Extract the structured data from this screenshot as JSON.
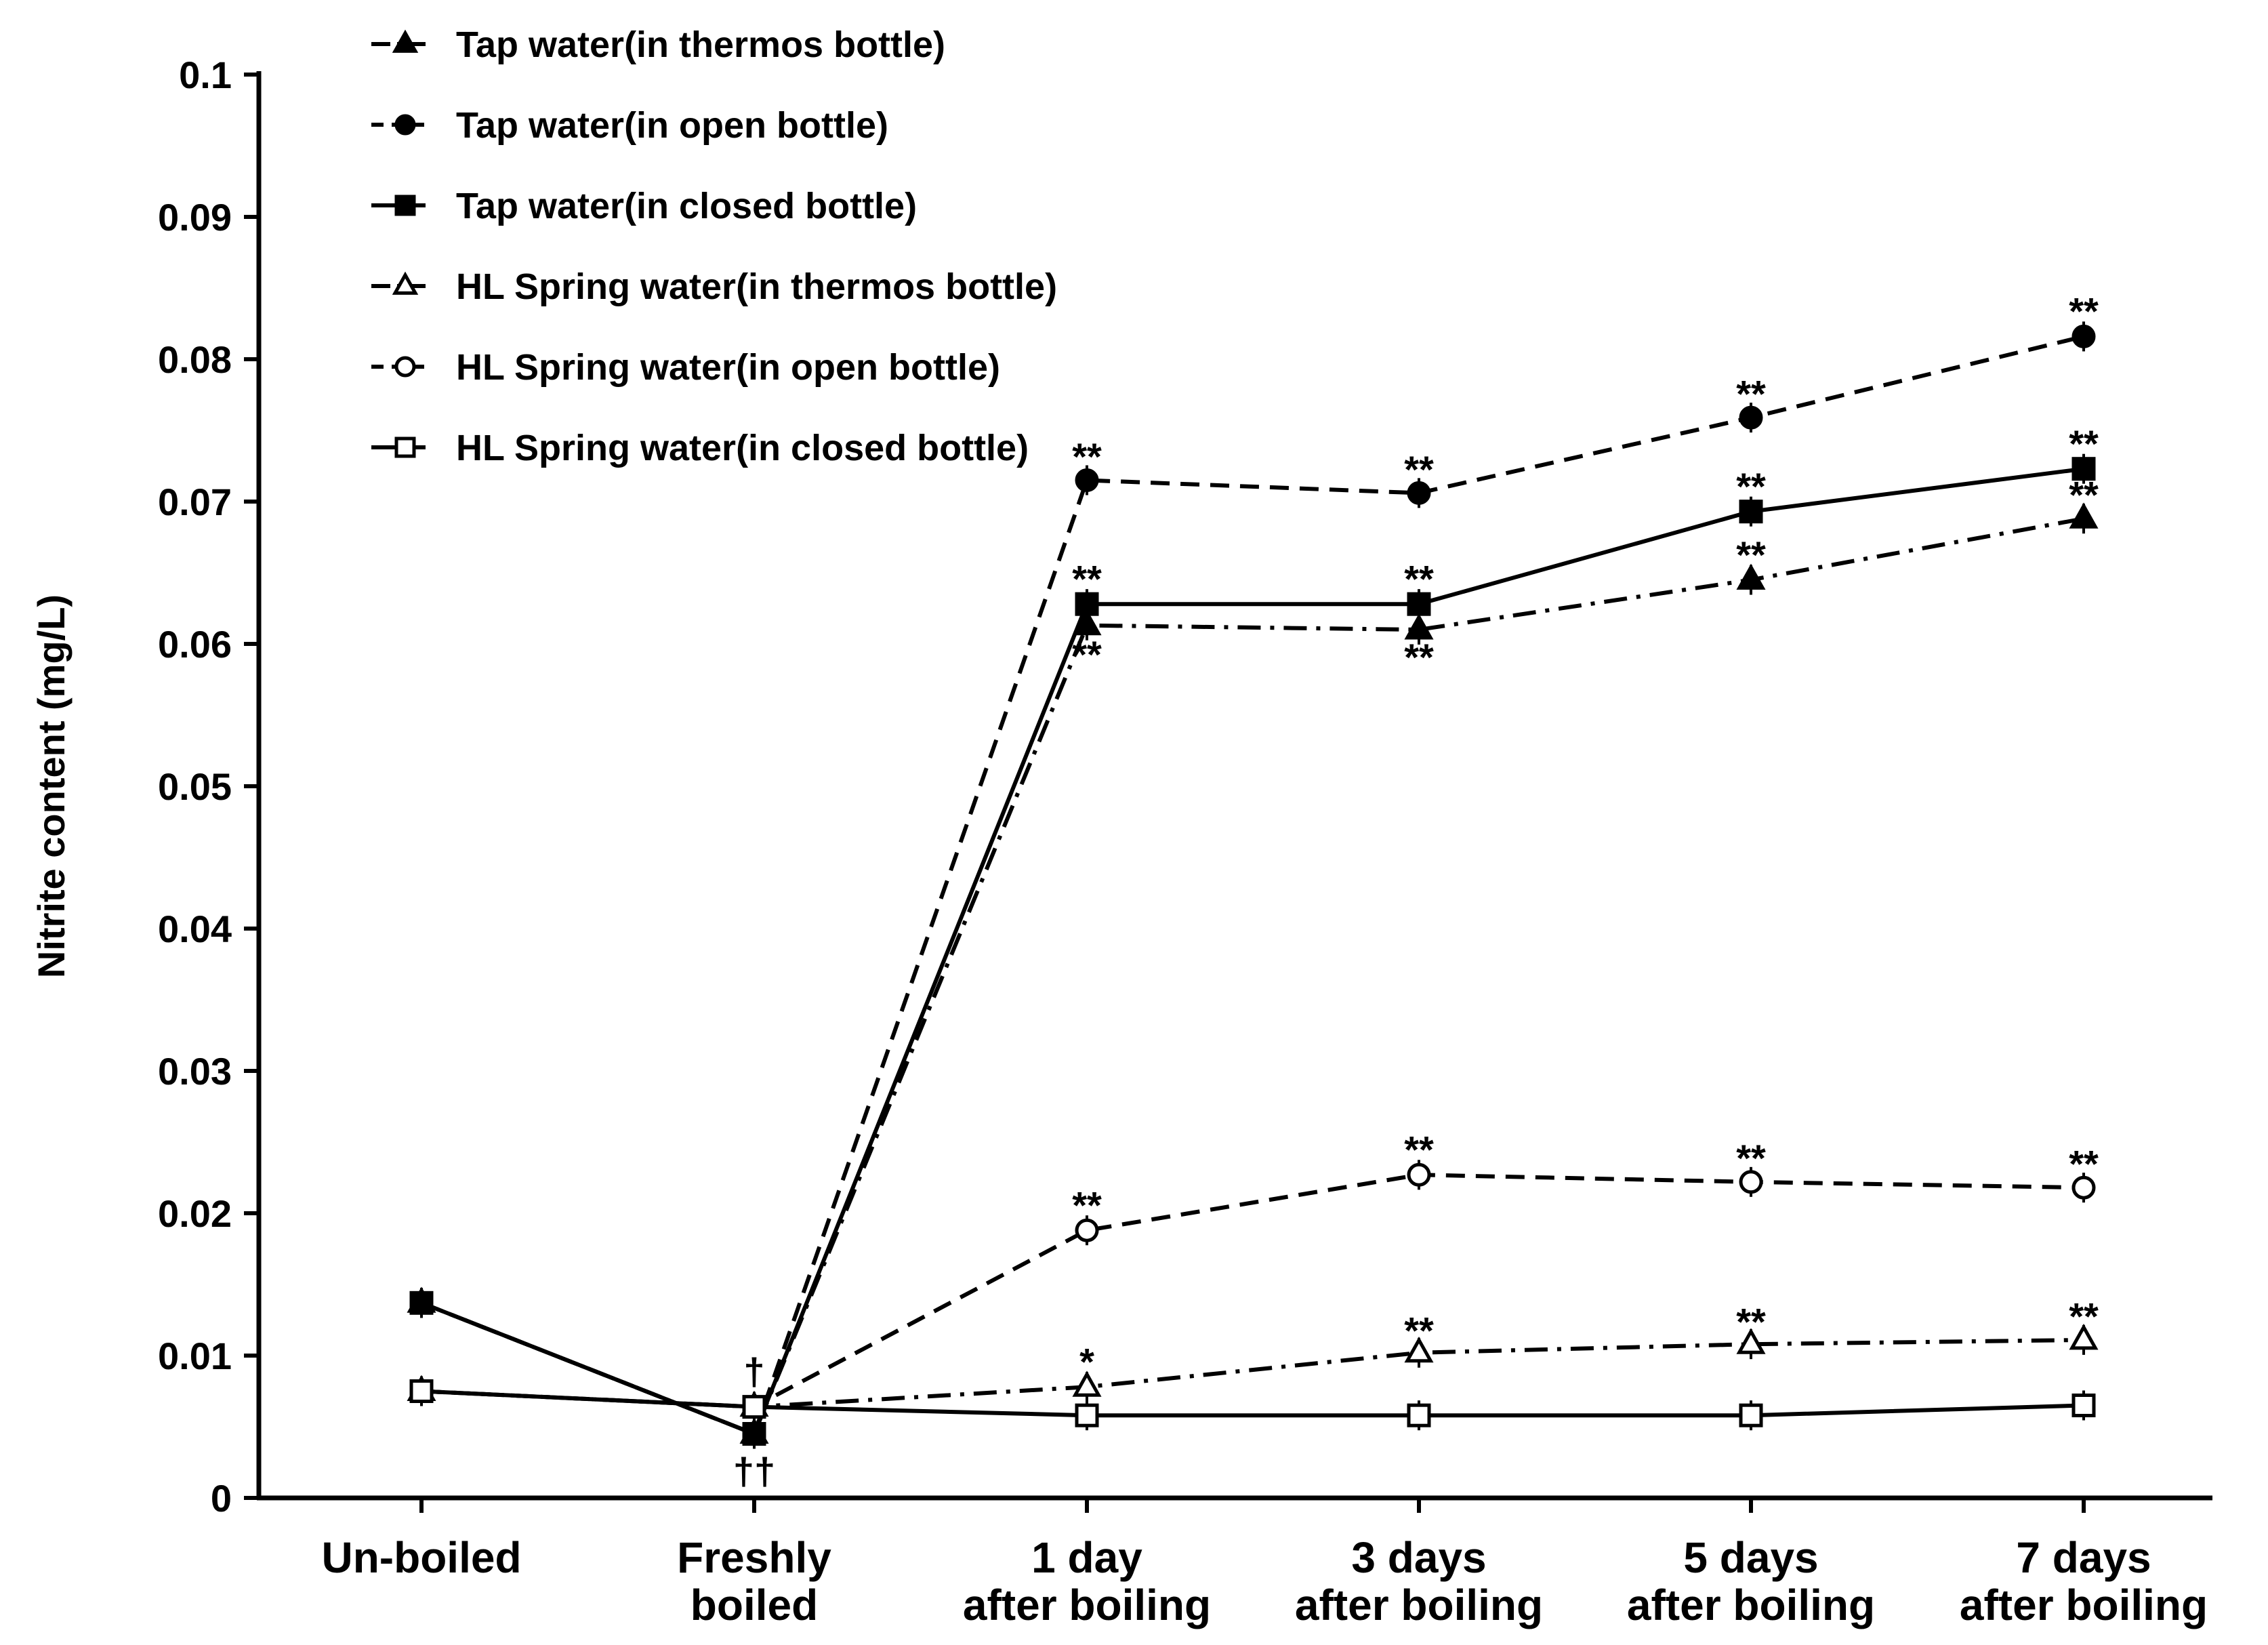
{
  "chart_data": {
    "type": "line",
    "title": "",
    "xlabel": "",
    "ylabel": "Nitrite content  (mg/L)",
    "ylim": [
      0,
      0.1
    ],
    "yticks": [
      "0",
      "0.01",
      "0.02",
      "0.03",
      "0.04",
      "0.05",
      "0.06",
      "0.07",
      "0.08",
      "0.09",
      "0.1"
    ],
    "categories": [
      [
        "Un-boiled"
      ],
      [
        "Freshly",
        "boiled"
      ],
      [
        "1 day",
        "after boiling"
      ],
      [
        "3 days",
        "after boiling"
      ],
      [
        "5 days",
        "after boiling"
      ],
      [
        "7 days",
        "after boiling"
      ]
    ],
    "legend_position": "top-left",
    "series": [
      {
        "name": "Tap water(in thermos bottle)",
        "marker": "triangle",
        "filled": true,
        "dash": "dashdot",
        "values": [
          0.0137,
          0.0045,
          0.0613,
          0.061,
          0.0645,
          0.0688
        ]
      },
      {
        "name": "Tap water(in open bottle)",
        "marker": "circle",
        "filled": true,
        "dash": "dashed",
        "values": [
          0.0137,
          0.0045,
          0.0715,
          0.0706,
          0.0759,
          0.0816
        ]
      },
      {
        "name": "Tap water(in closed bottle)",
        "marker": "square",
        "filled": true,
        "dash": "solid",
        "values": [
          0.0137,
          0.0045,
          0.0628,
          0.0628,
          0.0693,
          0.0723
        ]
      },
      {
        "name": "HL Spring water(in thermos bottle)",
        "marker": "triangle",
        "filled": false,
        "dash": "dashdot",
        "values": [
          0.0075,
          0.0064,
          0.0078,
          0.0102,
          0.0108,
          0.0111
        ]
      },
      {
        "name": "HL Spring water(in open bottle)",
        "marker": "circle",
        "filled": false,
        "dash": "dashed",
        "values": [
          0.0075,
          0.0064,
          0.0188,
          0.0227,
          0.0222,
          0.0218
        ]
      },
      {
        "name": "HL Spring water(in closed bottle)",
        "marker": "square",
        "filled": false,
        "dash": "solid",
        "values": [
          0.0075,
          0.0064,
          0.0058,
          0.0058,
          0.0058,
          0.0065
        ]
      }
    ],
    "annotations": [
      {
        "text": "**",
        "category": 2,
        "y": 0.0731
      },
      {
        "text": "**",
        "category": 2,
        "y": 0.0645
      },
      {
        "text": "**",
        "category": 2,
        "y": 0.0592
      },
      {
        "text": "**",
        "category": 2,
        "y": 0.0205
      },
      {
        "text": "*",
        "category": 2,
        "y": 0.0095
      },
      {
        "text": "**",
        "category": 3,
        "y": 0.0722
      },
      {
        "text": "**",
        "category": 3,
        "y": 0.0645
      },
      {
        "text": "**",
        "category": 3,
        "y": 0.059
      },
      {
        "text": "**",
        "category": 3,
        "y": 0.0244
      },
      {
        "text": "**",
        "category": 3,
        "y": 0.0117
      },
      {
        "text": "**",
        "category": 4,
        "y": 0.0775
      },
      {
        "text": "**",
        "category": 4,
        "y": 0.071
      },
      {
        "text": "**",
        "category": 4,
        "y": 0.0662
      },
      {
        "text": "**",
        "category": 4,
        "y": 0.0238
      },
      {
        "text": "**",
        "category": 4,
        "y": 0.0123
      },
      {
        "text": "**",
        "category": 5,
        "y": 0.0833
      },
      {
        "text": "**",
        "category": 5,
        "y": 0.074
      },
      {
        "text": "**",
        "category": 5,
        "y": 0.0704
      },
      {
        "text": "**",
        "category": 5,
        "y": 0.0234
      },
      {
        "text": "**",
        "category": 5,
        "y": 0.0127
      },
      {
        "text": "†",
        "category": 1,
        "y": 0.0088
      },
      {
        "text": "††",
        "category": 1,
        "y": 0.0018
      }
    ]
  }
}
